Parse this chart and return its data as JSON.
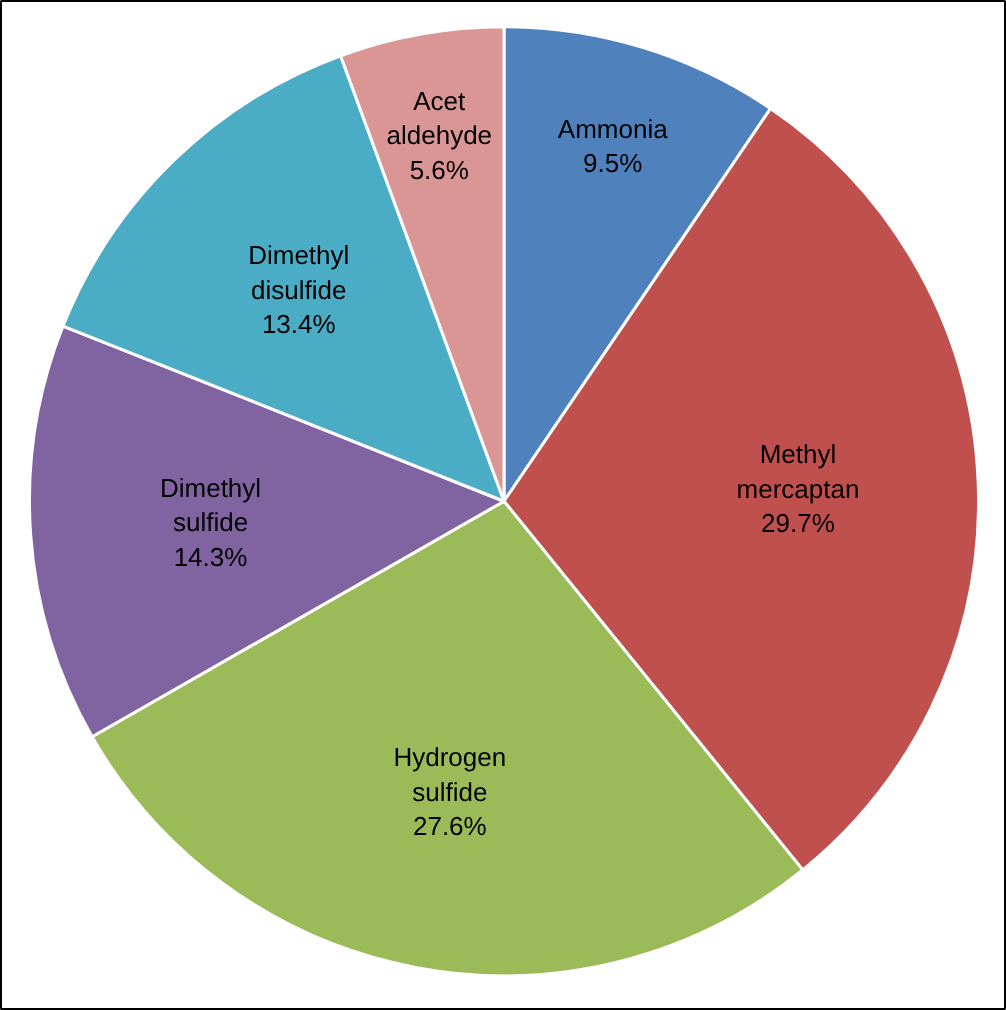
{
  "chart_data": {
    "type": "pie",
    "categories": [
      "Ammonia",
      "Methyl mercaptan",
      "Hydrogen sulfide",
      "Dimethyl sulfide",
      "Dimethyl disulfide",
      "Acet aldehyde"
    ],
    "values": [
      9.5,
      29.7,
      27.6,
      14.3,
      13.4,
      5.6
    ],
    "value_labels": [
      "9.5%",
      "29.7%",
      "27.6%",
      "14.3%",
      "13.4%",
      "5.6%"
    ],
    "colors": [
      "#4f81bd",
      "#c0504d",
      "#9bbb59",
      "#8064a2",
      "#4bacc6",
      "#d99694"
    ]
  }
}
